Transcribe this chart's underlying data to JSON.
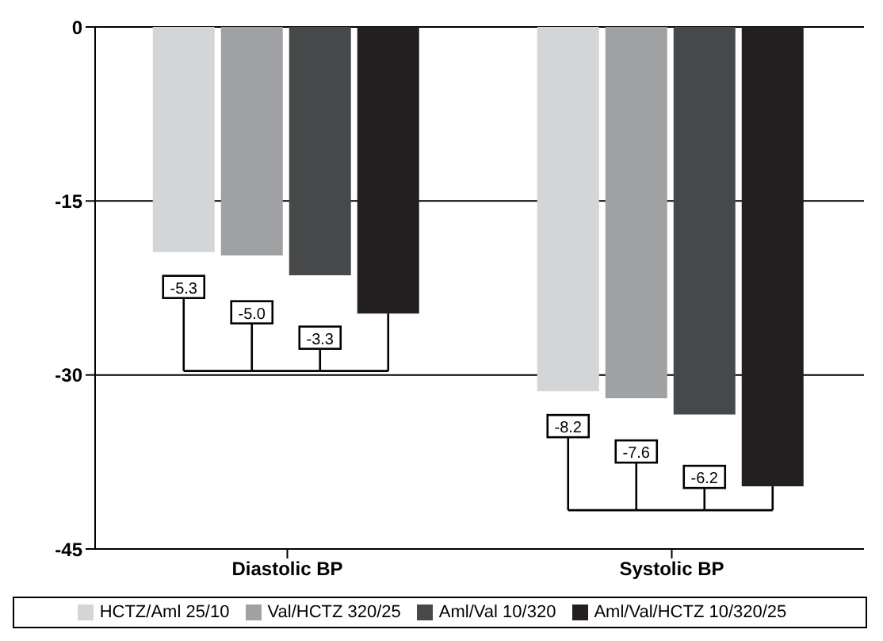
{
  "chart_data": {
    "type": "bar",
    "categories": [
      "Diastolic BP",
      "Systolic BP"
    ],
    "series": [
      {
        "name": "HCTZ/Aml 25/10",
        "color": "#d4d5d7",
        "values": [
          -19.4,
          -31.4
        ]
      },
      {
        "name": "Val/HCTZ 320/25",
        "color": "#a0a1a3",
        "values": [
          -19.7,
          -32.0
        ]
      },
      {
        "name": "Aml/Val 10/320",
        "color": "#47484a",
        "values": [
          -21.4,
          -33.4
        ]
      },
      {
        "name": "Aml/Val/HCTZ 10/320/25",
        "color": "#231f20",
        "values": [
          -24.7,
          -39.6
        ]
      }
    ],
    "ylim": [
      -45,
      0
    ],
    "yticks": [
      0,
      -15,
      -30,
      -45
    ],
    "grid": "y",
    "legend": "bottom",
    "annotations": [
      "-5.3",
      "-5.0",
      "-3.3",
      "-8.2",
      "-7.6",
      "-6.2"
    ]
  }
}
